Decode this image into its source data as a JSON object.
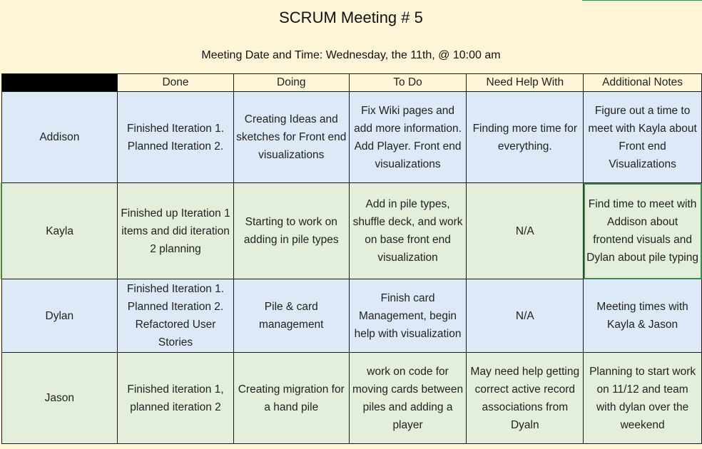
{
  "title": "SCRUM Meeting # 5",
  "subtitle": "Meeting Date and Time: Wednesday, the 11th, @ 10:00 am",
  "columns": [
    "Done",
    "Doing",
    "To Do",
    "Need Help With",
    "Additional Notes"
  ],
  "rows": [
    {
      "name": "Addison",
      "done": "Finished Iteration 1. Planned Iteration 2.",
      "doing": "Creating Ideas and sketches for Front end visualizations",
      "todo": "Fix Wiki pages and add more information. Add Player. Front end visualizations",
      "help": "Finding more time for everything.",
      "notes": "Figure out a time to meet with Kayla about Front end Visualizations"
    },
    {
      "name": "Kayla",
      "done": "Finished up Iteration 1 items and did iteration 2 planning",
      "doing": "Starting to work on adding in pile types",
      "todo": "Add in pile types, shuffle deck, and work on base front end visualization",
      "help": "N/A",
      "notes": "Find time to meet with Addison about frontend visuals and Dylan about pile typing"
    },
    {
      "name": "Dylan",
      "done": "Finished Iteration 1. Planned Iteration 2. Refactored User Stories",
      "doing": "Pile & card management",
      "todo": "Finish card Management, begin help with visualization",
      "help": "N/A",
      "notes": "Meeting times with Kayla & Jason"
    },
    {
      "name": "Jason",
      "done": "Finished iteration 1, planned iteration 2",
      "doing": "Creating migration for a hand pile",
      "todo": "work on code for moving cards between piles and adding a player",
      "help": "May need help getting correct active record associations from Dyaln",
      "notes": "Planning to start work on 11/12 and team with dylan over the weekend"
    }
  ],
  "colors": {
    "header_bg": "#fef4d8",
    "blue_row": "#dde9f6",
    "green_row": "#e3efda",
    "selection": "#3c8a4f"
  }
}
